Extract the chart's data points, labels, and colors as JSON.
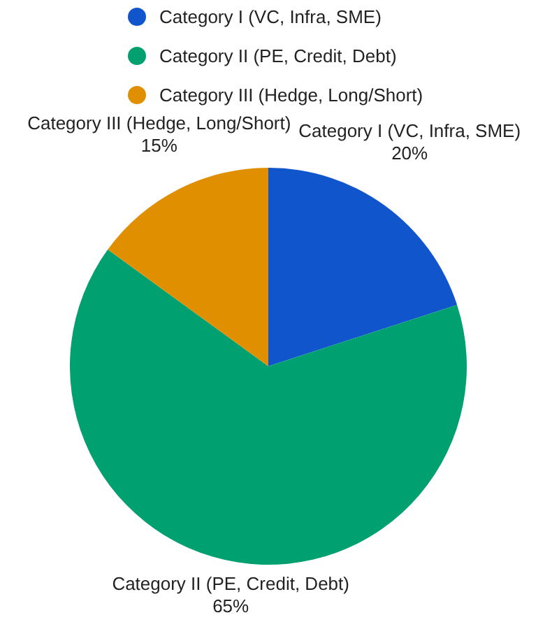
{
  "chart_data": {
    "type": "pie",
    "categories": [
      "Category I (VC, Infra, SME)",
      "Category II (PE, Credit, Debt)",
      "Category III (Hedge, Long/Short)"
    ],
    "values": [
      20,
      65,
      15
    ],
    "colors": [
      "#1155cc",
      "#00a070",
      "#e08f00"
    ],
    "value_labels": [
      "20%",
      "65%",
      "15%"
    ],
    "legend": "top"
  }
}
